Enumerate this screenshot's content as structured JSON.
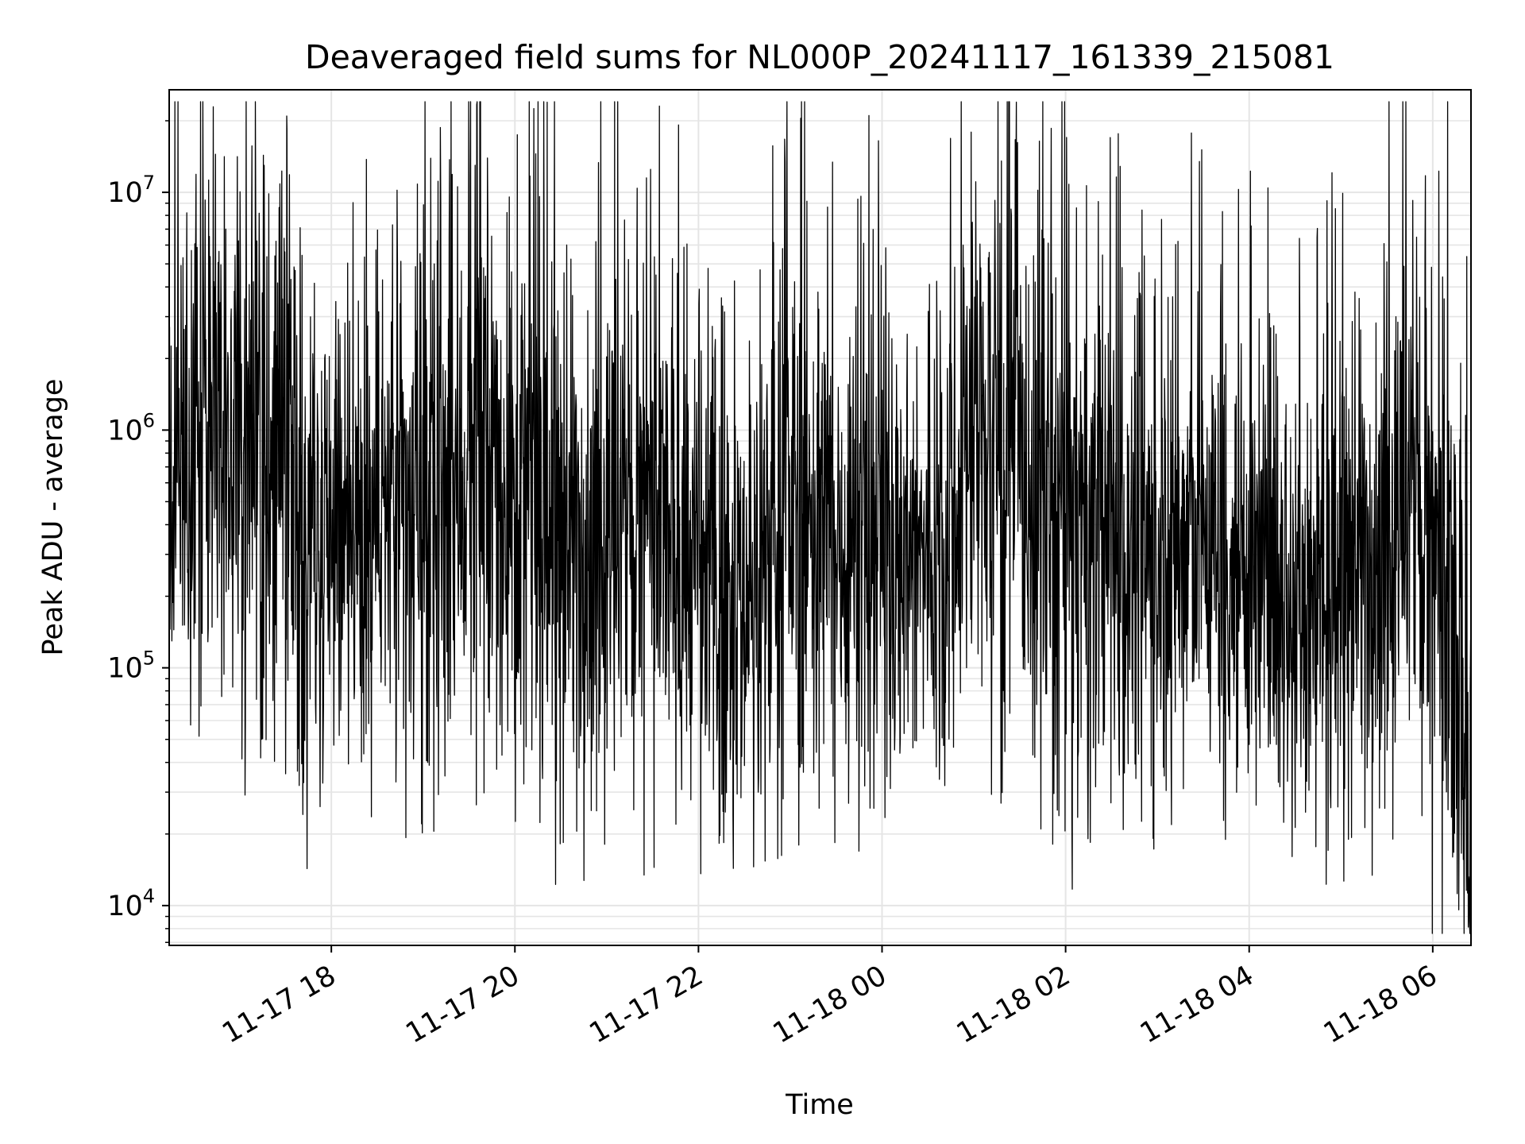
{
  "chart_data": {
    "type": "line",
    "title": "Deaveraged field sums for NL000P_20241117_161339_215081",
    "xlabel": "Time",
    "ylabel": "Peak ADU - average",
    "yscale": "log",
    "ylim": [
      6800,
      27000000
    ],
    "xlim": [
      "2024-11-17 16:14",
      "2024-11-18 06:25"
    ],
    "grid": true,
    "line_color": "#000000",
    "grid_color": "#e5e5e5",
    "x_ticks": [
      {
        "value": "2024-11-17 18:00",
        "label": "11-17 18"
      },
      {
        "value": "2024-11-17 20:00",
        "label": "11-17 20"
      },
      {
        "value": "2024-11-17 22:00",
        "label": "11-17 22"
      },
      {
        "value": "2024-11-18 00:00",
        "label": "11-18 00"
      },
      {
        "value": "2024-11-18 02:00",
        "label": "11-18 02"
      },
      {
        "value": "2024-11-18 04:00",
        "label": "11-18 04"
      },
      {
        "value": "2024-11-18 06:00",
        "label": "11-18 06"
      }
    ],
    "y_ticks": [
      {
        "value": 10000,
        "base": "10",
        "exp": "4"
      },
      {
        "value": 100000,
        "base": "10",
        "exp": "5"
      },
      {
        "value": 1000000,
        "base": "10",
        "exp": "6"
      },
      {
        "value": 10000000,
        "base": "10",
        "exp": "7"
      }
    ],
    "series": [
      {
        "x": [
          "2024-11-17 16:14",
          "2024-11-17 16:30",
          "2024-11-17 17:00",
          "2024-11-17 17:30",
          "2024-11-17 17:45",
          "2024-11-17 18:00",
          "2024-11-17 18:30",
          "2024-11-17 19:00",
          "2024-11-17 19:30",
          "2024-11-17 20:00",
          "2024-11-17 20:30",
          "2024-11-17 21:00",
          "2024-11-17 21:30",
          "2024-11-17 22:00",
          "2024-11-17 22:30",
          "2024-11-17 23:00",
          "2024-11-17 23:30",
          "2024-11-18 00:00",
          "2024-11-18 00:30",
          "2024-11-18 01:00",
          "2024-11-18 01:30",
          "2024-11-18 02:00",
          "2024-11-18 02:30",
          "2024-11-18 03:00",
          "2024-11-18 03:30",
          "2024-11-18 04:00",
          "2024-11-18 04:30",
          "2024-11-18 05:00",
          "2024-11-18 05:30",
          "2024-11-18 05:50",
          "2024-11-18 06:10",
          "2024-11-18 06:25"
        ],
        "y": [
          600000,
          1200000,
          800000,
          700000,
          400000,
          500000,
          450000,
          400000,
          700000,
          600000,
          350000,
          400000,
          400000,
          250000,
          200000,
          500000,
          350000,
          450000,
          250000,
          1100000,
          700000,
          400000,
          350000,
          300000,
          350000,
          280000,
          200000,
          250000,
          400000,
          500000,
          150000,
          40000
        ],
        "spread": [
          3,
          4,
          4,
          4,
          4,
          3,
          3.5,
          4,
          4,
          4,
          4,
          4,
          4,
          3.5,
          3.5,
          4,
          3.5,
          3.5,
          3,
          4,
          4,
          4,
          3.5,
          3.5,
          3.5,
          3.5,
          3.5,
          3.5,
          4,
          4,
          5,
          4
        ],
        "peaks": [
          {
            "x": "2024-11-17 17:31",
            "y": 18500000
          },
          {
            "x": "2024-11-17 19:34",
            "y": 13000000
          },
          {
            "x": "2024-11-17 21:26",
            "y": 11500000
          },
          {
            "x": "2024-11-17 16:51",
            "y": 7000000
          },
          {
            "x": "2024-11-17 18:40",
            "y": 7300000
          },
          {
            "x": "2024-11-17 20:19",
            "y": 7900000
          },
          {
            "x": "2024-11-17 22:55",
            "y": 5800000
          },
          {
            "x": "2024-11-17 23:48",
            "y": 6100000
          },
          {
            "x": "2024-11-18 01:05",
            "y": 3300000
          },
          {
            "x": "2024-11-18 02:48",
            "y": 4600000
          },
          {
            "x": "2024-11-18 05:30",
            "y": 5100000
          }
        ],
        "dips": [
          {
            "x": "2024-11-17 17:39",
            "y": 32000
          },
          {
            "x": "2024-11-17 19:03",
            "y": 40000
          },
          {
            "x": "2024-11-17 21:05",
            "y": 37000
          },
          {
            "x": "2024-11-17 23:28",
            "y": 35000
          },
          {
            "x": "2024-11-18 02:08",
            "y": 42000
          },
          {
            "x": "2024-11-18 03:17",
            "y": 31000
          },
          {
            "x": "2024-11-18 04:58",
            "y": 26000
          },
          {
            "x": "2024-11-18 06:13",
            "y": 16000
          },
          {
            "x": "2024-11-18 06:17",
            "y": 9600
          },
          {
            "x": "2024-11-18 06:25",
            "y": 13500
          }
        ]
      }
    ]
  }
}
